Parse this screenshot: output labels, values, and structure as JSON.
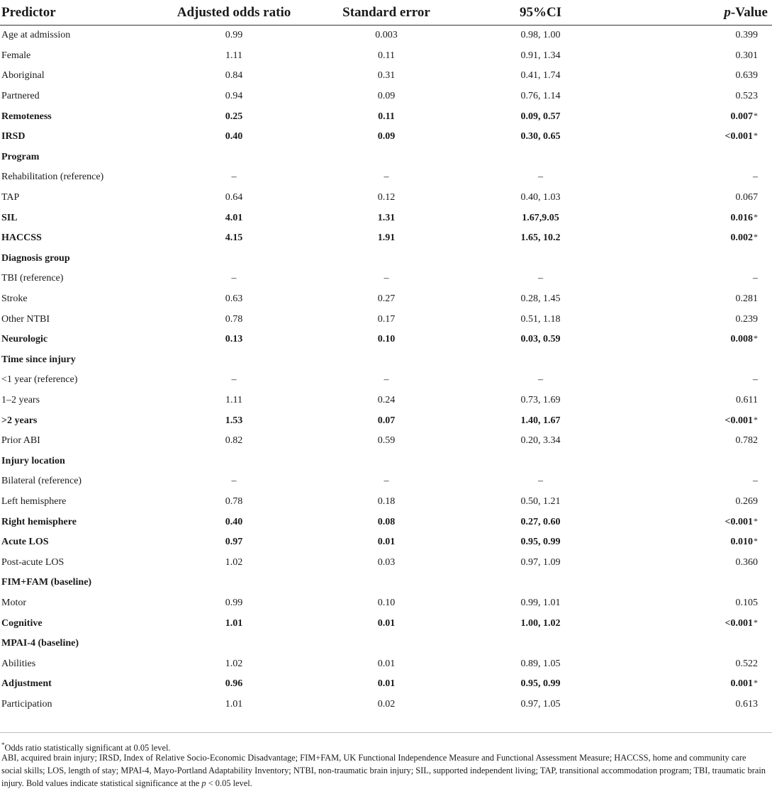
{
  "header": {
    "predictor": "Predictor",
    "odds": "Adjusted odds ratio",
    "se": "Standard error",
    "ci": "95%CI",
    "p_italic": "p",
    "p_rest": "-Value"
  },
  "rows": [
    {
      "label": "Age at admission",
      "or": "0.99",
      "se": "0.003",
      "ci": "0.98, 1.00",
      "p": "0.399",
      "sig": "",
      "style": "normal"
    },
    {
      "label": "Female",
      "or": "1.11",
      "se": "0.11",
      "ci": "0.91, 1.34",
      "p": "0.301",
      "sig": "",
      "style": "normal"
    },
    {
      "label": "Aboriginal",
      "or": "0.84",
      "se": "0.31",
      "ci": "0.41, 1.74",
      "p": "0.639",
      "sig": "",
      "style": "normal"
    },
    {
      "label": "Partnered",
      "or": "0.94",
      "se": "0.09",
      "ci": "0.76, 1.14",
      "p": "0.523",
      "sig": "",
      "style": "normal"
    },
    {
      "label": "Remoteness",
      "or": "0.25",
      "se": "0.11",
      "ci": "0.09, 0.57",
      "p": "0.007",
      "sig": "*",
      "style": "bold"
    },
    {
      "label": "IRSD",
      "or": "0.40",
      "se": "0.09",
      "ci": "0.30, 0.65",
      "p": "<0.001",
      "sig": "*",
      "style": "bold"
    },
    {
      "label": "Program",
      "or": "",
      "se": "",
      "ci": "",
      "p": "",
      "sig": "",
      "style": "section"
    },
    {
      "label": "Rehabilitation (reference)",
      "or": "–",
      "se": "–",
      "ci": "–",
      "p": "–",
      "sig": "",
      "style": "normal"
    },
    {
      "label": "TAP",
      "or": "0.64",
      "se": "0.12",
      "ci": "0.40, 1.03",
      "p": "0.067",
      "sig": "",
      "style": "normal"
    },
    {
      "label": "SIL",
      "or": "4.01",
      "se": "1.31",
      "ci": "1.67,9.05",
      "p": "0.016",
      "sig": "*",
      "style": "bold"
    },
    {
      "label": "HACCSS",
      "or": "4.15",
      "se": "1.91",
      "ci": "1.65, 10.2",
      "p": "0.002",
      "sig": "*",
      "style": "bold"
    },
    {
      "label": "Diagnosis group",
      "or": "",
      "se": "",
      "ci": "",
      "p": "",
      "sig": "",
      "style": "section"
    },
    {
      "label": "TBI (reference)",
      "or": "–",
      "se": "–",
      "ci": "–",
      "p": "–",
      "sig": "",
      "style": "normal"
    },
    {
      "label": "Stroke",
      "or": "0.63",
      "se": "0.27",
      "ci": "0.28, 1.45",
      "p": "0.281",
      "sig": "",
      "style": "normal"
    },
    {
      "label": "Other NTBI",
      "or": "0.78",
      "se": "0.17",
      "ci": "0.51, 1.18",
      "p": "0.239",
      "sig": "",
      "style": "normal"
    },
    {
      "label": "Neurologic",
      "or": "0.13",
      "se": "0.10",
      "ci": "0.03, 0.59",
      "p": "0.008",
      "sig": "*",
      "style": "bold"
    },
    {
      "label": "Time since injury",
      "or": "",
      "se": "",
      "ci": "",
      "p": "",
      "sig": "",
      "style": "section"
    },
    {
      "label": "<1 year (reference)",
      "or": "–",
      "se": "–",
      "ci": "–",
      "p": "–",
      "sig": "",
      "style": "normal"
    },
    {
      "label": "1–2 years",
      "or": "1.11",
      "se": "0.24",
      "ci": "0.73, 1.69",
      "p": "0.611",
      "sig": "",
      "style": "normal"
    },
    {
      "label": ">2 years",
      "or": "1.53",
      "se": "0.07",
      "ci": "1.40, 1.67",
      "p": "<0.001",
      "sig": "*",
      "style": "bold"
    },
    {
      "label": "Prior ABI",
      "or": "0.82",
      "se": "0.59",
      "ci": "0.20, 3.34",
      "p": "0.782",
      "sig": "",
      "style": "normal"
    },
    {
      "label": "Injury location",
      "or": "",
      "se": "",
      "ci": "",
      "p": "",
      "sig": "",
      "style": "section"
    },
    {
      "label": "Bilateral (reference)",
      "or": "–",
      "se": "–",
      "ci": "–",
      "p": "–",
      "sig": "",
      "style": "normal"
    },
    {
      "label": "Left hemisphere",
      "or": "0.78",
      "se": "0.18",
      "ci": "0.50, 1.21",
      "p": "0.269",
      "sig": "",
      "style": "normal"
    },
    {
      "label": "Right hemisphere",
      "or": "0.40",
      "se": "0.08",
      "ci": "0.27, 0.60",
      "p": "<0.001",
      "sig": "*",
      "style": "bold"
    },
    {
      "label": "Acute LOS",
      "or": "0.97",
      "se": "0.01",
      "ci": "0.95, 0.99",
      "p": "0.010",
      "sig": "*",
      "style": "bold"
    },
    {
      "label": "Post-acute LOS",
      "or": "1.02",
      "se": "0.03",
      "ci": "0.97, 1.09",
      "p": "0.360",
      "sig": "",
      "style": "normal"
    },
    {
      "label": "FIM+FAM (baseline)",
      "or": "",
      "se": "",
      "ci": "",
      "p": "",
      "sig": "",
      "style": "section"
    },
    {
      "label": "Motor",
      "or": "0.99",
      "se": "0.10",
      "ci": "0.99, 1.01",
      "p": "0.105",
      "sig": "",
      "style": "normal"
    },
    {
      "label": "Cognitive",
      "or": "1.01",
      "se": "0.01",
      "ci": "1.00, 1.02",
      "p": "<0.001",
      "sig": "*",
      "style": "bold"
    },
    {
      "label": "MPAI-4 (baseline)",
      "or": "",
      "se": "",
      "ci": "",
      "p": "",
      "sig": "",
      "style": "section"
    },
    {
      "label": "Abilities",
      "or": "1.02",
      "se": "0.01",
      "ci": "0.89, 1.05",
      "p": "0.522",
      "sig": "",
      "style": "normal"
    },
    {
      "label": "Adjustment",
      "or": "0.96",
      "se": "0.01",
      "ci": "0.95, 0.99",
      "p": "0.001",
      "sig": "*",
      "style": "bold"
    },
    {
      "label": "Participation",
      "or": "1.01",
      "se": "0.02",
      "ci": "0.97, 1.05",
      "p": "0.613",
      "sig": "",
      "style": "normal"
    }
  ],
  "footnotes": {
    "star_mark": "*",
    "star_text": "Odds ratio statistically significant at 0.05 level.",
    "abbrev_text": "ABI, acquired brain injury; IRSD, Index of Relative Socio-Economic Disadvantage; FIM+FAM, UK Functional Independence Measure and Functional Assessment Measure; HACCSS, home and community care social skills; LOS, length of stay; MPAI-4, Mayo-Portland Adaptability Inventory; NTBI, non-traumatic brain injury; SIL, supported independent living; TAP, transitional accommodation program; TBI, traumatic brain injury. Bold values indicate statistical significance at the",
    "p_italic": "p",
    "abbrev_end": "< 0.05 level."
  }
}
